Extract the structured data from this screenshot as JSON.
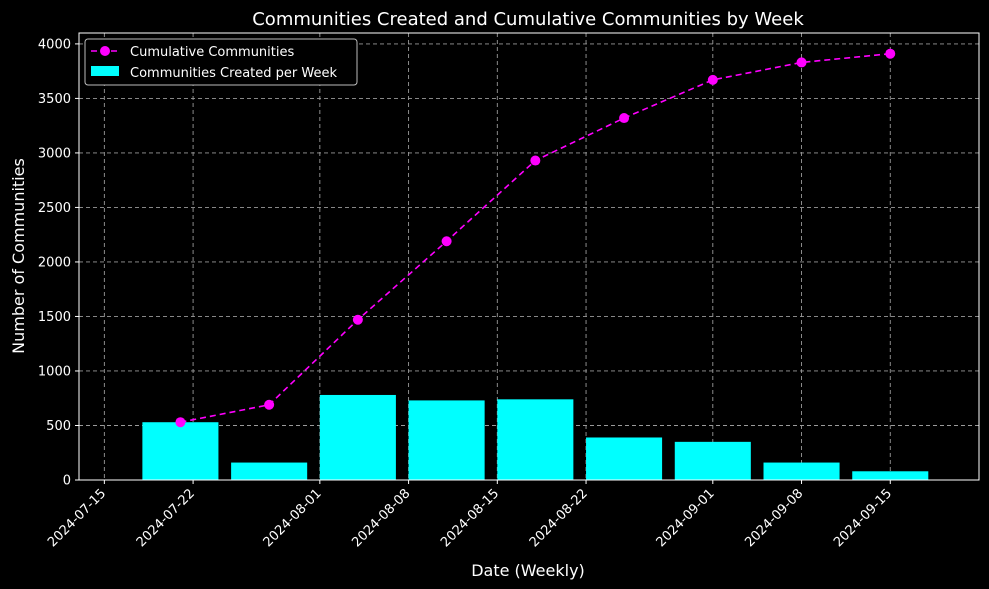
{
  "chart_data": {
    "type": "bar",
    "title": "Communities Created and Cumulative Communities by Week",
    "xlabel": "Date (Weekly)",
    "ylabel": "Number of Communities",
    "x_ticks": [
      "2024-07-15",
      "2024-07-22",
      "2024-08-01",
      "2024-08-08",
      "2024-08-15",
      "2024-08-22",
      "2024-09-01",
      "2024-09-08",
      "2024-09-15"
    ],
    "y_ticks": [
      0,
      500,
      1000,
      1500,
      2000,
      2500,
      3000,
      3500,
      4000
    ],
    "ylim": [
      0,
      4100
    ],
    "xlim": [
      "2024-07-13",
      "2024-09-22"
    ],
    "grid": true,
    "legend_position": "top-left",
    "dates": [
      "2024-07-21",
      "2024-07-28",
      "2024-08-04",
      "2024-08-11",
      "2024-08-18",
      "2024-08-25",
      "2024-09-01",
      "2024-09-08",
      "2024-09-15"
    ],
    "series": [
      {
        "name": "Cumulative Communities",
        "type": "line",
        "color": "#ff00ff",
        "values": [
          530,
          690,
          1470,
          2190,
          2930,
          3320,
          3670,
          3830,
          3910
        ]
      },
      {
        "name": "Communities Created per Week",
        "type": "bar",
        "color": "#00ffff",
        "values": [
          530,
          160,
          780,
          730,
          740,
          390,
          350,
          160,
          80
        ]
      }
    ]
  }
}
